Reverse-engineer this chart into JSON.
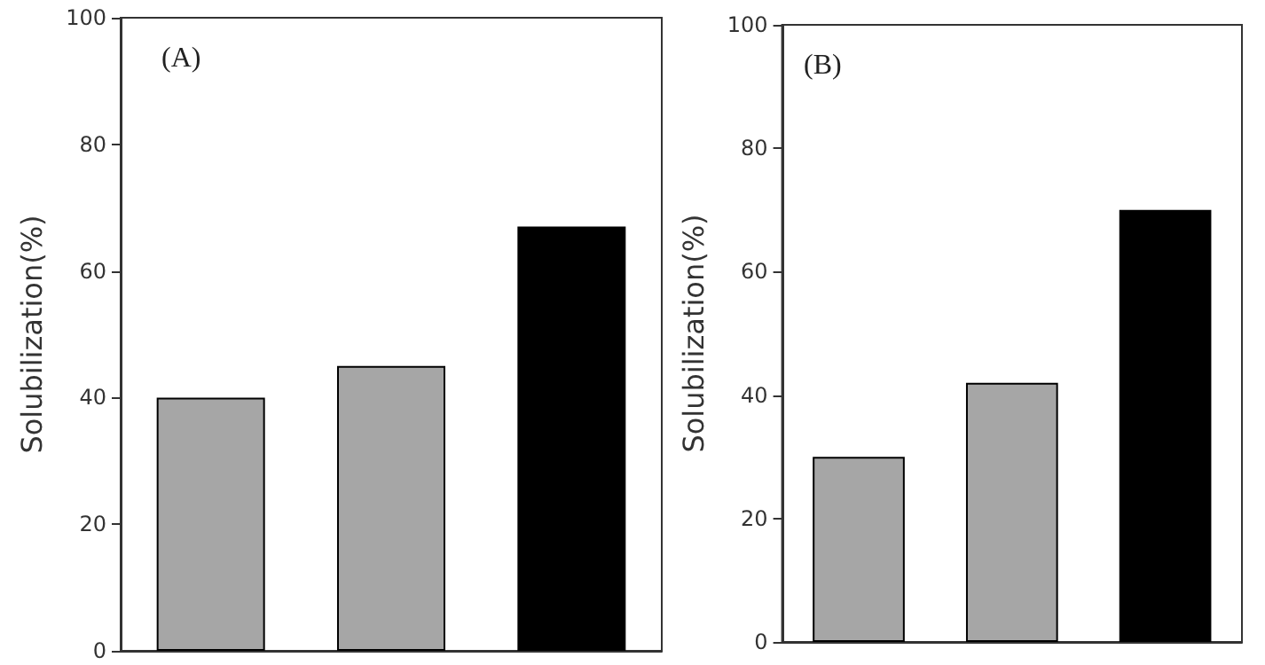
{
  "chart_data": [
    {
      "type": "bar",
      "title": "(A)",
      "ylabel": "Solubilization(%)",
      "categories": [
        null,
        null,
        null
      ],
      "values": [
        40,
        45,
        67
      ],
      "colors": [
        "#a6a6a6",
        "#a6a6a6",
        "#000000"
      ],
      "ylim": [
        0,
        100
      ],
      "yticks": [
        0,
        20,
        40,
        60,
        80,
        100
      ],
      "grid": false
    },
    {
      "type": "bar",
      "title": "(B)",
      "ylabel": "Solubilization(%)",
      "categories": [
        null,
        null,
        null
      ],
      "values": [
        30,
        42,
        70
      ],
      "colors": [
        "#a6a6a6",
        "#a6a6a6",
        "#000000"
      ],
      "ylim": [
        0,
        100
      ],
      "yticks": [
        0,
        20,
        40,
        60,
        80,
        100
      ],
      "grid": false
    }
  ]
}
